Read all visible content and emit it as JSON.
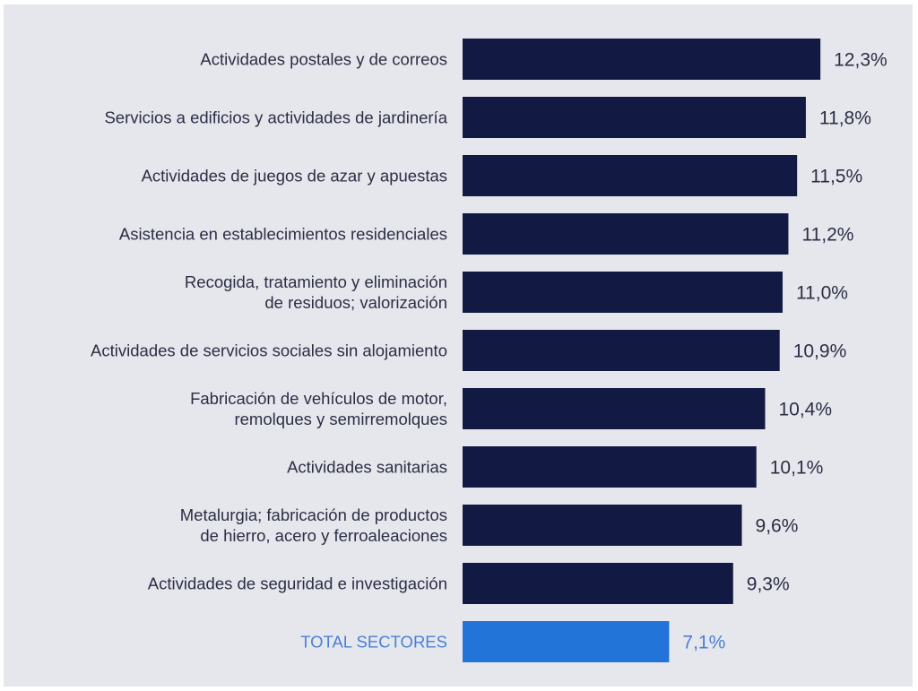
{
  "chart_data": {
    "type": "bar",
    "orientation": "horizontal",
    "title": "",
    "xlabel": "",
    "ylabel": "",
    "xlim": [
      0,
      12.3
    ],
    "grid": false,
    "legend": "none",
    "value_format": "percent, comma decimal separator",
    "colors": {
      "bar": "#121a43",
      "total_bar": "#2274d8",
      "total_text": "#4a7fd8",
      "text": "#2b2e45",
      "background": "#e6e7ec"
    },
    "categories": [
      [
        "Actividades postales y de correos"
      ],
      [
        "Servicios a edificios y actividades de jardinería"
      ],
      [
        "Actividades de juegos de azar y apuestas"
      ],
      [
        "Asistencia en establecimientos residenciales"
      ],
      [
        "Recogida, tratamiento y eliminación",
        "de residuos; valorización"
      ],
      [
        "Actividades de servicios sociales sin alojamiento"
      ],
      [
        "Fabricación de vehículos de motor,",
        "remolques y semirremolques"
      ],
      [
        "Actividades sanitarias"
      ],
      [
        "Metalurgia; fabricación de productos",
        "de hierro, acero y ferroaleaciones"
      ],
      [
        "Actividades de seguridad e investigación"
      ],
      [
        "TOTAL SECTORES"
      ]
    ],
    "values": [
      12.3,
      11.8,
      11.5,
      11.2,
      11.0,
      10.9,
      10.4,
      10.1,
      9.6,
      9.3,
      7.1
    ],
    "value_labels": [
      "12,3%",
      "11,8%",
      "11,5%",
      "11,2%",
      "11,0%",
      "10,9%",
      "10,4%",
      "10,1%",
      "9,6%",
      "9,3%",
      "7,1%"
    ],
    "highlight_index": 10
  }
}
